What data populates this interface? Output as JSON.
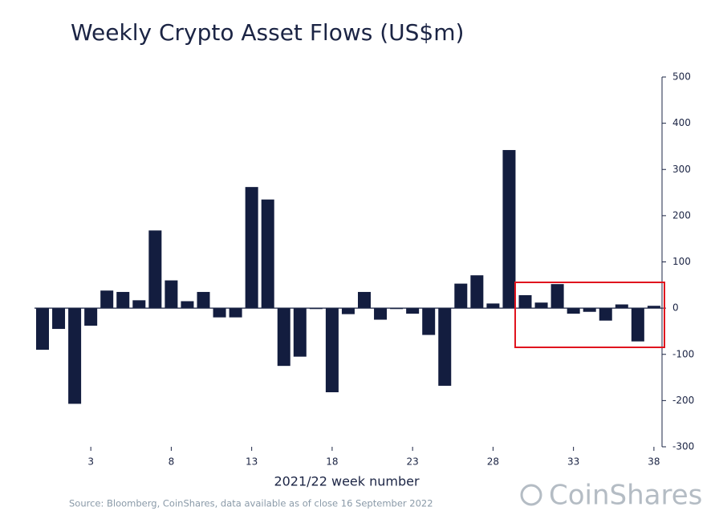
{
  "chart_data": {
    "type": "bar",
    "title": "Weekly Crypto Asset Flows (US$m)",
    "x_label": "2021/22 week number",
    "source": "Source: Bloomberg, CoinShares, data available as of close 16 September 2022",
    "brand": "CoinShares",
    "categories": [
      null,
      null,
      null,
      "3",
      null,
      null,
      null,
      null,
      "8",
      null,
      null,
      null,
      null,
      "13",
      null,
      null,
      null,
      null,
      "18",
      null,
      null,
      null,
      null,
      "23",
      null,
      null,
      null,
      null,
      "28",
      null,
      null,
      null,
      null,
      "33",
      null,
      null,
      null,
      null,
      "38"
    ],
    "values": [
      -90,
      -45,
      -207,
      -38,
      38,
      35,
      17,
      168,
      60,
      15,
      35,
      -20,
      -20,
      262,
      235,
      -125,
      -105,
      -2,
      -182,
      -13,
      35,
      -25,
      -2,
      -12,
      -58,
      -168,
      53,
      71,
      10,
      342,
      28,
      12,
      52,
      -12,
      -8,
      -27,
      8,
      -72,
      5
    ],
    "color": "#131d3f",
    "ylim": [
      -300,
      500
    ],
    "yticks": [
      -300,
      -200,
      -100,
      0,
      100,
      200,
      300,
      400,
      500
    ],
    "y_axis_side": "right",
    "grid": false
  }
}
